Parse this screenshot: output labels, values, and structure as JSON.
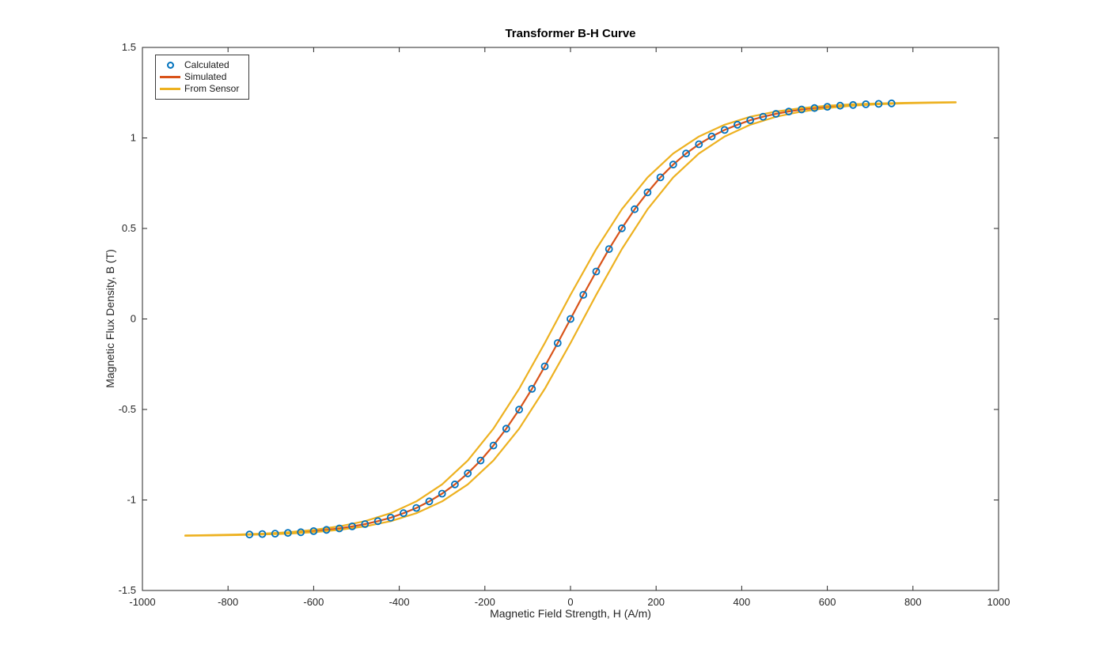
{
  "chart_data": {
    "type": "line",
    "title": "Transformer B-H Curve",
    "xlabel": "Magnetic Field Strength, H (A/m)",
    "ylabel": "Magnetic Flux Density, B (T)",
    "xlim": [
      -1000,
      1000
    ],
    "ylim": [
      -1.5,
      1.5
    ],
    "grid": false,
    "legend_position": "top-left-inside",
    "axis_color": "#262626",
    "background": "#ffffff",
    "xticks": {
      "values": [
        -1000,
        -800,
        -600,
        -400,
        -200,
        0,
        200,
        400,
        600,
        800,
        1000
      ],
      "labels": [
        "-1000",
        "-800",
        "-600",
        "-400",
        "-200",
        "0",
        "200",
        "400",
        "600",
        "800",
        "1000"
      ]
    },
    "yticks": {
      "values": [
        -1.5,
        -1,
        -0.5,
        0,
        0.5,
        1,
        1.5
      ],
      "labels": [
        "-1.5",
        "-1",
        "-0.5",
        "0",
        "0.5",
        "1",
        "1.5"
      ]
    },
    "series": [
      {
        "name": "Calculated",
        "style": "scatter",
        "marker": "open-circle",
        "color": "#0072BD",
        "x": [
          -750,
          -720,
          -690,
          -660,
          -630,
          -600,
          -570,
          -540,
          -510,
          -480,
          -450,
          -420,
          -390,
          -360,
          -330,
          -300,
          -270,
          -240,
          -210,
          -180,
          -150,
          -120,
          -90,
          -60,
          -30,
          0,
          30,
          60,
          90,
          120,
          150,
          180,
          210,
          240,
          270,
          300,
          330,
          360,
          390,
          420,
          450,
          480,
          510,
          540,
          570,
          600,
          630,
          660,
          690,
          720,
          750
        ],
        "y": [
          -1.191,
          -1.188,
          -1.186,
          -1.182,
          -1.178,
          -1.172,
          -1.165,
          -1.157,
          -1.146,
          -1.133,
          -1.117,
          -1.098,
          -1.073,
          -1.044,
          -1.008,
          -0.965,
          -0.914,
          -0.853,
          -0.782,
          -0.699,
          -0.606,
          -0.501,
          -0.386,
          -0.262,
          -0.133,
          0,
          0.133,
          0.262,
          0.386,
          0.501,
          0.606,
          0.699,
          0.782,
          0.853,
          0.914,
          0.965,
          1.008,
          1.044,
          1.073,
          1.098,
          1.117,
          1.133,
          1.146,
          1.157,
          1.165,
          1.172,
          1.178,
          1.182,
          1.186,
          1.188,
          1.191
        ]
      },
      {
        "name": "Simulated",
        "style": "line",
        "color": "#D95319",
        "width": 2.2,
        "x": [
          -750,
          -720,
          -690,
          -660,
          -630,
          -600,
          -570,
          -540,
          -510,
          -480,
          -450,
          -420,
          -390,
          -360,
          -330,
          -300,
          -270,
          -240,
          -210,
          -180,
          -150,
          -120,
          -90,
          -60,
          -30,
          0,
          30,
          60,
          90,
          120,
          150,
          180,
          210,
          240,
          270,
          300,
          330,
          360,
          390,
          420,
          450,
          480,
          510,
          540,
          570,
          600,
          630,
          660,
          690,
          720,
          750
        ],
        "y": [
          -1.191,
          -1.188,
          -1.186,
          -1.182,
          -1.178,
          -1.172,
          -1.165,
          -1.157,
          -1.146,
          -1.133,
          -1.117,
          -1.098,
          -1.073,
          -1.044,
          -1.008,
          -0.965,
          -0.914,
          -0.853,
          -0.782,
          -0.699,
          -0.606,
          -0.501,
          -0.386,
          -0.262,
          -0.133,
          0,
          0.133,
          0.262,
          0.386,
          0.501,
          0.606,
          0.699,
          0.782,
          0.853,
          0.914,
          0.965,
          1.008,
          1.044,
          1.073,
          1.098,
          1.117,
          1.133,
          1.146,
          1.157,
          1.165,
          1.172,
          1.178,
          1.182,
          1.186,
          1.188,
          1.191
        ]
      },
      {
        "name": "From Sensor",
        "style": "line",
        "color": "#EDB120",
        "width": 2.2,
        "x": [
          -900,
          -840,
          -780,
          -720,
          -660,
          -600,
          -540,
          -480,
          -420,
          -360,
          -300,
          -240,
          -180,
          -120,
          -60,
          0,
          60,
          120,
          180,
          240,
          300,
          360,
          420,
          480,
          540,
          600,
          660,
          720,
          780,
          840,
          900,
          900,
          840,
          780,
          720,
          660,
          600,
          540,
          480,
          420,
          360,
          300,
          240,
          180,
          120,
          60,
          0,
          -60,
          -120,
          -180,
          -240,
          -300,
          -360,
          -420,
          -480,
          -540,
          -600,
          -660,
          -720,
          -780,
          -840,
          -900
        ],
        "y": [
          -1.198,
          -1.196,
          -1.194,
          -1.191,
          -1.186,
          -1.178,
          -1.165,
          -1.146,
          -1.117,
          -1.073,
          -1.008,
          -0.914,
          -0.782,
          -0.606,
          -0.386,
          -0.133,
          0.133,
          0.386,
          0.606,
          0.782,
          0.914,
          1.008,
          1.073,
          1.117,
          1.146,
          1.165,
          1.178,
          1.186,
          1.191,
          1.194,
          1.196,
          1.198,
          1.196,
          1.194,
          1.191,
          1.186,
          1.178,
          1.165,
          1.146,
          1.117,
          1.073,
          1.008,
          0.914,
          0.782,
          0.606,
          0.386,
          0.133,
          -0.133,
          -0.386,
          -0.606,
          -0.782,
          -0.914,
          -1.008,
          -1.073,
          -1.117,
          -1.146,
          -1.165,
          -1.178,
          -1.186,
          -1.191,
          -1.194,
          -1.196
        ]
      }
    ]
  }
}
